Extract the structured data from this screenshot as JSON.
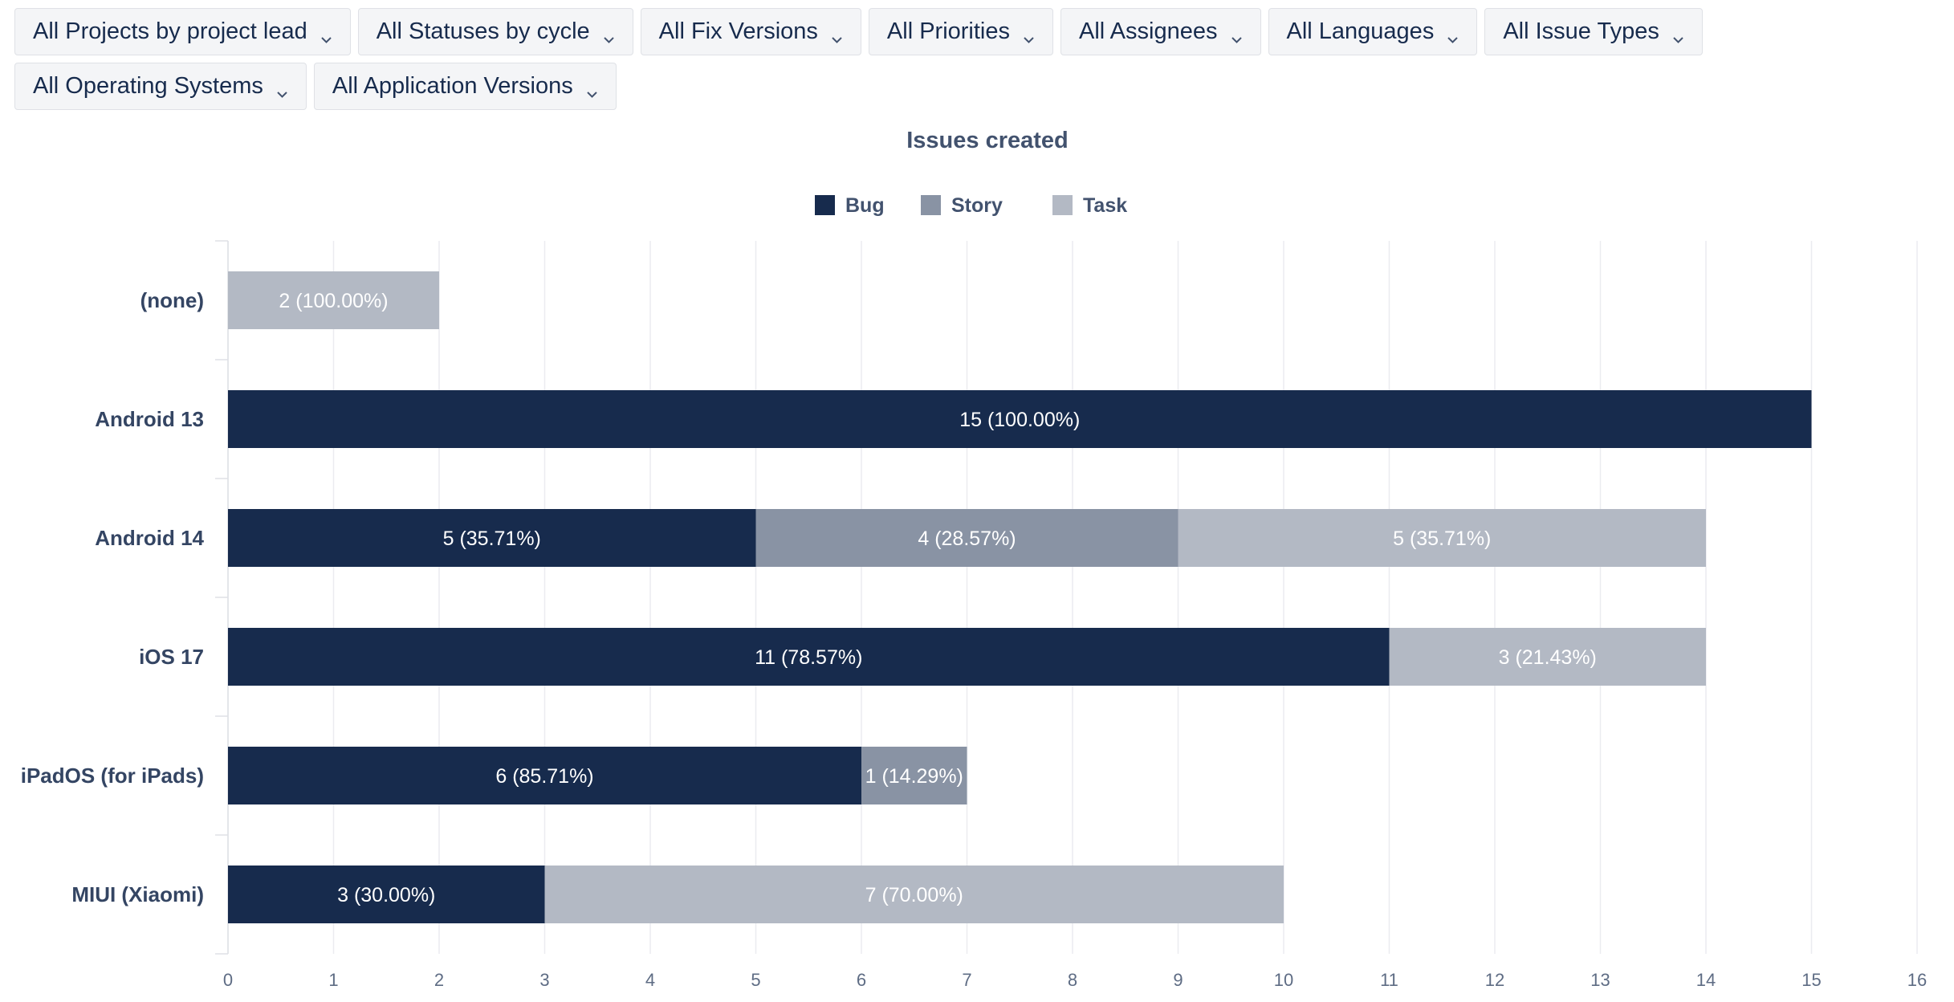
{
  "filters": [
    {
      "label": "All Projects by project lead",
      "name": "filter-projects"
    },
    {
      "label": "All Statuses by cycle",
      "name": "filter-statuses"
    },
    {
      "label": "All Fix Versions",
      "name": "filter-fix-versions"
    },
    {
      "label": "All Priorities",
      "name": "filter-priorities"
    },
    {
      "label": "All Assignees",
      "name": "filter-assignees"
    },
    {
      "label": "All Languages",
      "name": "filter-languages"
    },
    {
      "label": "All Issue Types",
      "name": "filter-issue-types"
    },
    {
      "label": "All Operating Systems",
      "name": "filter-operating-systems"
    },
    {
      "label": "All Application Versions",
      "name": "filter-application-versions"
    }
  ],
  "chart_data": {
    "type": "bar",
    "orientation": "horizontal",
    "stacked": true,
    "title": "Issues created",
    "legend_position": "top-center",
    "grid": true,
    "xlim": [
      0,
      16
    ],
    "x_ticks": [
      "0",
      "1",
      "2",
      "3",
      "4",
      "5",
      "6",
      "7",
      "8",
      "9",
      "10",
      "11",
      "12",
      "13",
      "14",
      "15",
      "16"
    ],
    "categories": [
      "(none)",
      "Android 13",
      "Android 14",
      "iOS 17",
      "iPadOS (for iPads)",
      "MIUI (Xiaomi)"
    ],
    "series": [
      {
        "name": "Bug",
        "color": "#172b4d",
        "values": [
          0,
          15,
          5,
          11,
          6,
          3
        ],
        "labels": [
          "",
          "15 (100.00%)",
          "5 (35.71%)",
          "11 (78.57%)",
          "6 (85.71%)",
          "3 (30.00%)"
        ]
      },
      {
        "name": "Story",
        "color": "#8993a4",
        "values": [
          0,
          0,
          4,
          0,
          1,
          0
        ],
        "labels": [
          "",
          "",
          "4 (28.57%)",
          "",
          "1 (14.29%)",
          ""
        ]
      },
      {
        "name": "Task",
        "color": "#b3b9c4",
        "values": [
          2,
          0,
          5,
          3,
          0,
          7
        ],
        "labels": [
          "2 (100.00%)",
          "",
          "5 (35.71%)",
          "3 (21.43%)",
          "",
          "7 (70.00%)"
        ]
      }
    ]
  },
  "colors": {
    "grid": "#ebecf0",
    "axis": "#dfe1e6"
  }
}
